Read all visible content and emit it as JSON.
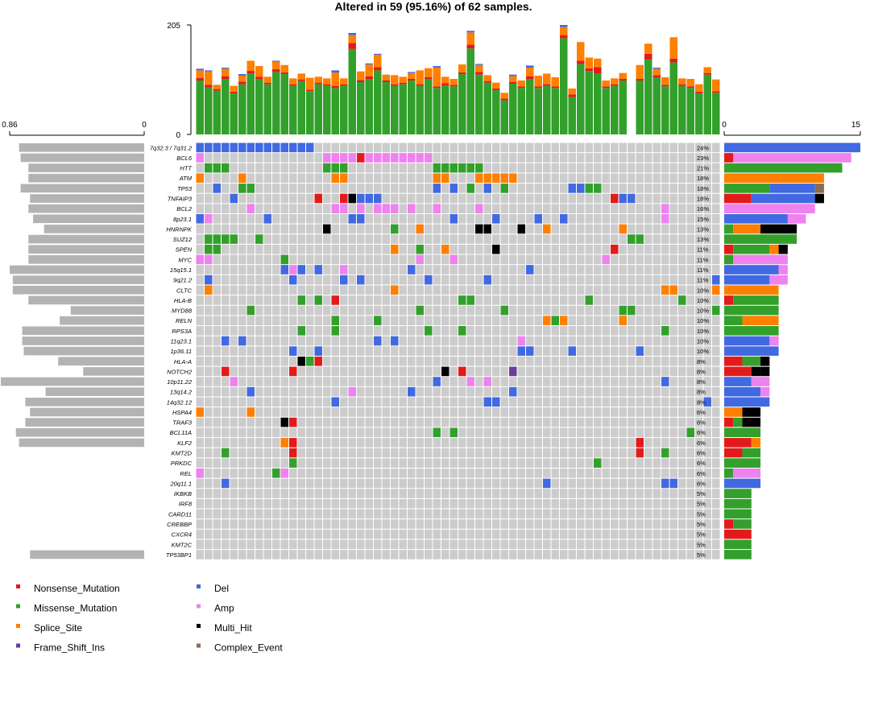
{
  "chart_data": {
    "type": "heatmap",
    "title": "Altered in 59 (95.16%) of 62 samples.",
    "colors": {
      "Nonsense_Mutation": "#e31a1c",
      "Missense_Mutation": "#33a02c",
      "Splice_Site": "#ff7f00",
      "Frame_Shift_Ins": "#6a3d9a",
      "Del": "#4169e1",
      "Amp": "#ee82ee",
      "Multi_Hit": "#000000",
      "Complex_Event": "#8b6b55"
    },
    "legend": [
      {
        "label": "Nonsense_Mutation",
        "key": "Nonsense_Mutation"
      },
      {
        "label": "Missense_Mutation",
        "key": "Missense_Mutation"
      },
      {
        "label": "Splice_Site",
        "key": "Splice_Site"
      },
      {
        "label": "Frame_Shift_Ins",
        "key": "Frame_Shift_Ins"
      },
      {
        "label": "Del",
        "key": "Del"
      },
      {
        "label": "Amp",
        "key": "Amp"
      },
      {
        "label": "Multi_Hit",
        "key": "Multi_Hit"
      },
      {
        "label": "Complex_Event",
        "key": "Complex_Event"
      }
    ],
    "genes": [
      "7q32.3 / 7q31.2",
      "BCL6",
      "HTT",
      "ATM",
      "TP53",
      "TNFAIP3",
      "BCL2",
      "8p23.1",
      "HNRNPK",
      "SUZ12",
      "SPEN",
      "MYC",
      "15q15.1",
      "9q21.2",
      "CLTC",
      "HLA-B",
      "MYD88",
      "RELN",
      "RPS3A",
      "11q23.1",
      "1p36.11",
      "HLA-A",
      "NOTCH2",
      "10p11.22",
      "13q14.2",
      "14q32.12",
      "HSPA4",
      "TRAF3",
      "BCL11A",
      "KLF2",
      "KMT2D",
      "PRKDC",
      "REL",
      "20q11.1",
      "IKBKB",
      "IRF8",
      "CARD11",
      "CREBBP",
      "CXCR4",
      "KMT2C",
      "TP53BP1"
    ],
    "percents": [
      "24%",
      "23%",
      "21%",
      "18%",
      "18%",
      "18%",
      "16%",
      "15%",
      "13%",
      "13%",
      "11%",
      "11%",
      "11%",
      "11%",
      "10%",
      "10%",
      "10%",
      "10%",
      "10%",
      "10%",
      "10%",
      "8%",
      "8%",
      "8%",
      "8%",
      "8%",
      "6%",
      "6%",
      "6%",
      "6%",
      "6%",
      "6%",
      "6%",
      "6%",
      "5%",
      "5%",
      "5%",
      "5%",
      "5%",
      "5%",
      "5%"
    ],
    "top_axis": {
      "min": 0,
      "max": 205,
      "ticks": [
        "0",
        "205"
      ]
    },
    "left_axis": {
      "min": 0,
      "max": 0.86,
      "ticks": [
        "0.86",
        "0"
      ]
    },
    "right_axis": {
      "min": 0,
      "max": 15,
      "ticks": [
        "0",
        "15"
      ]
    },
    "n_samples": 62,
    "tmb_top": [
      {
        "g": 101,
        "r": 5,
        "o": 14,
        "b": 3
      },
      {
        "g": 88,
        "r": 5,
        "o": 25,
        "b": 2
      },
      {
        "g": 82,
        "r": 3,
        "o": 8,
        "b": 0
      },
      {
        "g": 104,
        "r": 5,
        "o": 14,
        "b": 2
      },
      {
        "g": 77,
        "r": 3,
        "o": 11,
        "b": 0
      },
      {
        "g": 94,
        "r": 5,
        "o": 11,
        "b": 3
      },
      {
        "g": 114,
        "r": 5,
        "o": 19,
        "b": 0
      },
      {
        "g": 104,
        "r": 4,
        "o": 20,
        "b": 0
      },
      {
        "g": 94,
        "r": 3,
        "o": 11,
        "b": 0
      },
      {
        "g": 117,
        "r": 5,
        "o": 14,
        "b": 2
      },
      {
        "g": 113,
        "r": 3,
        "o": 14,
        "b": 0
      },
      {
        "g": 91,
        "r": 3,
        "o": 11,
        "b": 0
      },
      {
        "g": 100,
        "r": 3,
        "o": 11,
        "b": 0
      },
      {
        "g": 81,
        "r": 3,
        "o": 22,
        "b": 0
      },
      {
        "g": 94,
        "r": 3,
        "o": 11,
        "b": 0
      },
      {
        "g": 91,
        "r": 3,
        "o": 11,
        "b": 0
      },
      {
        "g": 87,
        "r": 4,
        "o": 25,
        "b": 4
      },
      {
        "g": 91,
        "r": 3,
        "o": 11,
        "b": 0
      },
      {
        "g": 160,
        "r": 11,
        "o": 15,
        "b": 4
      },
      {
        "g": 98,
        "r": 4,
        "o": 16,
        "b": 0
      },
      {
        "g": 104,
        "r": 5,
        "o": 22,
        "b": 2
      },
      {
        "g": 120,
        "r": 6,
        "o": 23,
        "b": 2
      },
      {
        "g": 98,
        "r": 3,
        "o": 11,
        "b": 0
      },
      {
        "g": 91,
        "r": 3,
        "o": 17,
        "b": 0
      },
      {
        "g": 94,
        "r": 3,
        "o": 11,
        "b": 0
      },
      {
        "g": 101,
        "r": 3,
        "o": 11,
        "b": 2
      },
      {
        "g": 91,
        "r": 3,
        "o": 26,
        "b": 0
      },
      {
        "g": 104,
        "r": 3,
        "o": 17,
        "b": 0
      },
      {
        "g": 87,
        "r": 3,
        "o": 35,
        "b": 3
      },
      {
        "g": 92,
        "r": 4,
        "o": 12,
        "b": 0
      },
      {
        "g": 90,
        "r": 3,
        "o": 11,
        "b": 0
      },
      {
        "g": 113,
        "r": 3,
        "o": 15,
        "b": 0
      },
      {
        "g": 161,
        "r": 7,
        "o": 23,
        "b": 3
      },
      {
        "g": 112,
        "r": 5,
        "o": 13,
        "b": 2
      },
      {
        "g": 97,
        "r": 3,
        "o": 11,
        "b": 0
      },
      {
        "g": 83,
        "r": 3,
        "o": 11,
        "b": 0
      },
      {
        "g": 64,
        "r": 3,
        "o": 11,
        "b": 0
      },
      {
        "g": 95,
        "r": 3,
        "o": 11,
        "b": 3
      },
      {
        "g": 87,
        "r": 3,
        "o": 11,
        "b": 0
      },
      {
        "g": 104,
        "r": 5,
        "o": 16,
        "b": 4
      },
      {
        "g": 87,
        "r": 3,
        "o": 20,
        "b": 0
      },
      {
        "g": 91,
        "r": 3,
        "o": 20,
        "b": 0
      },
      {
        "g": 87,
        "r": 3,
        "o": 17,
        "b": 0
      },
      {
        "g": 180,
        "r": 6,
        "o": 15,
        "b": 4
      },
      {
        "g": 70,
        "r": 5,
        "o": 11,
        "b": 0
      },
      {
        "g": 132,
        "r": 6,
        "o": 35,
        "b": 0
      },
      {
        "g": 119,
        "r": 5,
        "o": 20,
        "b": 0
      },
      {
        "g": 114,
        "r": 12,
        "o": 16,
        "b": 0
      },
      {
        "g": 87,
        "r": 3,
        "o": 11,
        "b": 0
      },
      {
        "g": 91,
        "r": 3,
        "o": 11,
        "b": 0
      },
      {
        "g": 101,
        "r": 3,
        "o": 11,
        "b": 0
      },
      {
        "g": 0,
        "r": 0,
        "o": 0,
        "b": 0
      },
      {
        "g": 101,
        "r": 3,
        "o": 26,
        "b": 0
      },
      {
        "g": 140,
        "r": 11,
        "o": 19,
        "b": 0
      },
      {
        "g": 106,
        "r": 5,
        "o": 12,
        "b": 2
      },
      {
        "g": 90,
        "r": 3,
        "o": 14,
        "b": 0
      },
      {
        "g": 135,
        "r": 7,
        "o": 40,
        "b": 0
      },
      {
        "g": 91,
        "r": 3,
        "o": 11,
        "b": 0
      },
      {
        "g": 87,
        "r": 3,
        "o": 14,
        "b": 0
      },
      {
        "g": 77,
        "r": 3,
        "o": 14,
        "b": 0
      },
      {
        "g": 112,
        "r": 3,
        "o": 11,
        "b": 0
      },
      {
        "g": 78,
        "r": 3,
        "o": 22,
        "b": 0
      }
    ],
    "left_values": [
      0.8,
      0.79,
      0.74,
      0.74,
      0.79,
      0.73,
      0.74,
      0.71,
      0.64,
      0.74,
      0.74,
      0.74,
      0.86,
      0.84,
      0.84,
      0.74,
      0.47,
      0.54,
      0.78,
      0.78,
      0.77,
      0.55,
      0.39,
      0.99,
      0.63,
      0.76,
      0.73,
      0.76,
      0.82,
      0.8,
      0,
      0,
      0,
      0,
      0,
      0,
      0,
      0,
      0,
      0,
      0.73
    ],
    "right_bars": [
      [
        [
          "B",
          15
        ]
      ],
      [
        [
          "R",
          1
        ],
        [
          "A",
          13
        ]
      ],
      [
        [
          "G",
          13
        ]
      ],
      [
        [
          "O",
          11
        ]
      ],
      [
        [
          "G",
          5
        ],
        [
          "B",
          5
        ],
        [
          "C",
          1
        ]
      ],
      [
        [
          "R",
          3
        ],
        [
          "B",
          7
        ],
        [
          "K",
          1
        ]
      ],
      [
        [
          "A",
          10
        ]
      ],
      [
        [
          "B",
          7
        ],
        [
          "A",
          2
        ]
      ],
      [
        [
          "G",
          1
        ],
        [
          "O",
          3
        ],
        [
          "K",
          4
        ]
      ],
      [
        [
          "G",
          8
        ]
      ],
      [
        [
          "R",
          1
        ],
        [
          "G",
          4
        ],
        [
          "O",
          1
        ],
        [
          "K",
          1
        ]
      ],
      [
        [
          "G",
          1
        ],
        [
          "A",
          6
        ]
      ],
      [
        [
          "B",
          6
        ],
        [
          "A",
          1
        ]
      ],
      [
        [
          "B",
          5
        ],
        [
          "A",
          2
        ]
      ],
      [
        [
          "O",
          6
        ]
      ],
      [
        [
          "R",
          1
        ],
        [
          "G",
          5
        ]
      ],
      [
        [
          "G",
          6
        ]
      ],
      [
        [
          "G",
          2
        ],
        [
          "O",
          4
        ]
      ],
      [
        [
          "G",
          6
        ]
      ],
      [
        [
          "B",
          5
        ],
        [
          "A",
          1
        ]
      ],
      [
        [
          "B",
          6
        ]
      ],
      [
        [
          "R",
          2
        ],
        [
          "G",
          2
        ],
        [
          "K",
          1
        ]
      ],
      [
        [
          "R",
          3
        ],
        [
          "P",
          1
        ],
        [
          "K",
          1
        ]
      ],
      [
        [
          "B",
          3
        ],
        [
          "A",
          2
        ]
      ],
      [
        [
          "B",
          4
        ],
        [
          "A",
          1
        ]
      ],
      [
        [
          "B",
          5
        ]
      ],
      [
        [
          "O",
          2
        ],
        [
          "K",
          2
        ]
      ],
      [
        [
          "R",
          1
        ],
        [
          "G",
          1
        ],
        [
          "K",
          2
        ]
      ],
      [
        [
          "G",
          4
        ]
      ],
      [
        [
          "R",
          3
        ],
        [
          "O",
          1
        ]
      ],
      [
        [
          "R",
          2
        ],
        [
          "G",
          2
        ]
      ],
      [
        [
          "G",
          4
        ]
      ],
      [
        [
          "G",
          1
        ],
        [
          "A",
          3
        ]
      ],
      [
        [
          "B",
          4
        ]
      ],
      [
        [
          "G",
          3
        ]
      ],
      [
        [
          "G",
          3
        ]
      ],
      [
        [
          "G",
          3
        ]
      ],
      [
        [
          "R",
          1
        ],
        [
          "G",
          2
        ]
      ],
      [
        [
          "R",
          3
        ]
      ],
      [
        [
          "G",
          3
        ]
      ],
      [
        [
          "G",
          3
        ]
      ]
    ],
    "matrix": [
      "BBBBBBBBBBBBBB................................................",
      "A..............AAAARAAAAAAAA..................................",
      ".GGG...........GGG..........GGGGGG............................",
      "O....O..........OO..........OO...OOOOO........................",
      "..B..GG.....................B.B.G.B.G.......BBGG..............",
      "....B.........R..RKBBB...........................RBB...........",
      "......A.........AA.A.AAA.A..A....A.....................A......",
      "BA......B.........BB..........B....B....B..B...........A......",
      "...............K.......G..O......KK...K..O........O...........",
      ".GGGG..G...........................................GG.........",
      ".GG....................O..G..O.....K.............R............",
      "AA........G...............A...A.................A............",
      "..........BAB.B..A.......B.............B.........................",
      ".B.........B.....B.B.......B......B..........................B",
      ".O.....................O...............................OO....OO..",
      "............G.G.R..............GG.............G..........G..........",
      "......G...................G.........G.............GG.........G.........",
      "................G....G...................OGO......O......................",
      "............G...G..........G...G.......................G.........",
      "...B.B...............B.B..............A..........................",
      "...........B..B.......................BB....B.......B.............",
      "............KGR.................................................",
      "...R.......R.................K.R.....F.....................",
      "....A.......................B...A.A....................B.........",
      "......B...........A......B...........B..........................",
      "................B.................BB........................B......",
      "O.....O..........................................................",
      "..........KR.................................................",
      "............................G.G...........................G.......",
      "..........OR........................................R..............",
      "...G.......R........................................R..G...........",
      "...........G...................................G.......................",
      "A........GA...............................................................",
      "...B.....................................B.............BB..................",
      "..............................................................",
      "..............................................................",
      "..............................................................",
      "..............................................................",
      "..............................................................",
      "..............................................................",
      ".............................................................."
    ]
  }
}
